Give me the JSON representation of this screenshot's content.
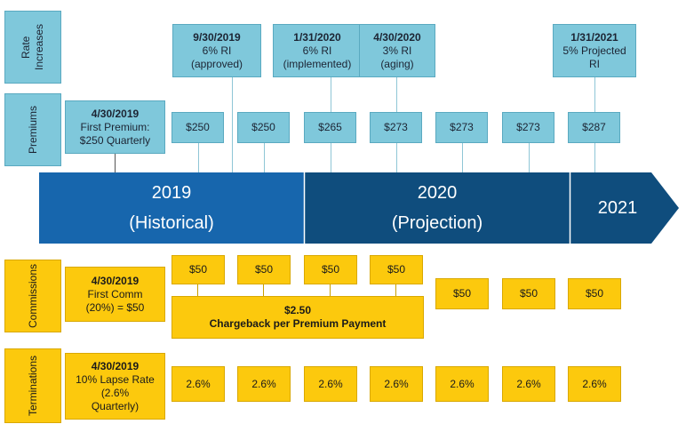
{
  "row_labels": {
    "rate_increases": "Rate Increases",
    "premiums": "Premiums",
    "commissions": "Commissions",
    "terminations": "Terminations"
  },
  "rate_increases": [
    {
      "date": "9/30/2019",
      "line1": "6% RI",
      "line2": "(approved)"
    },
    {
      "date": "1/31/2020",
      "line1": "6% RI",
      "line2": "(implemented)"
    },
    {
      "date": "4/30/2020",
      "line1": "3% RI",
      "line2": "(aging)"
    },
    {
      "date": "1/31/2021",
      "line1": "5% Projected",
      "line2": "RI"
    }
  ],
  "first_premium": {
    "date": "4/30/2019",
    "line1": "First Premium:",
    "line2": "$250 Quarterly"
  },
  "premiums": [
    "$250",
    "$250",
    "$265",
    "$273",
    "$273",
    "$273",
    "$287"
  ],
  "timeline": {
    "historical_year": "2019",
    "historical_label": "(Historical)",
    "projection_year": "2020",
    "projection_label": "(Projection)",
    "future_year": "2021",
    "colors": {
      "historical": "#1766ad",
      "projection": "#0f4d7d",
      "future": "#0f4d7d"
    }
  },
  "first_comm": {
    "date": "4/30/2019",
    "line1": "First Comm",
    "line2": "(20%) = $50"
  },
  "commissions_upper": [
    "$50",
    "$50",
    "$50",
    "$50"
  ],
  "commissions_lower": [
    "$50",
    "$50",
    "$50"
  ],
  "chargeback": {
    "amount": "$2.50",
    "label": "Chargeback per Premium Payment"
  },
  "first_lapse": {
    "date": "4/30/2019",
    "line1": "10% Lapse Rate",
    "line2": "(2.6%",
    "line3": "Quarterly)"
  },
  "terminations": [
    "2.6%",
    "2.6%",
    "2.6%",
    "2.6%",
    "2.6%",
    "2.6%",
    "2.6%"
  ]
}
